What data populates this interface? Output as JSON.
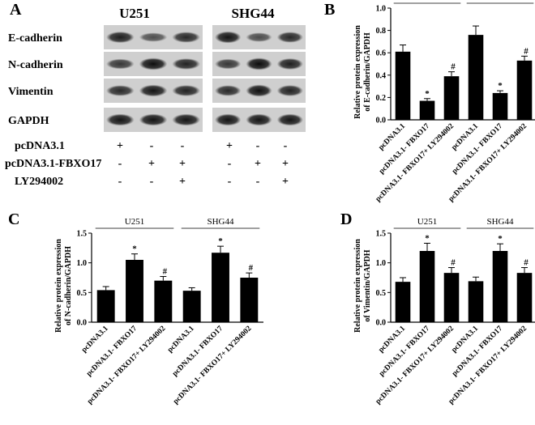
{
  "panel_a": {
    "letter": "A",
    "cell_lines": [
      "U251",
      "SHG44"
    ],
    "proteins": [
      "E-cadherin",
      "N-cadherin",
      "Vimentin",
      "GAPDH"
    ],
    "treatment_rows": [
      {
        "label": "pcDNA3.1",
        "signs": [
          "+",
          "-",
          "-",
          "+",
          "-",
          "-"
        ]
      },
      {
        "label": "pcDNA3.1-FBXO17",
        "signs": [
          "-",
          "+",
          "+",
          "-",
          "+",
          "+"
        ]
      },
      {
        "label": "LY294002",
        "signs": [
          "-",
          "-",
          "+",
          "-",
          "-",
          "+"
        ]
      }
    ],
    "band_intensity": [
      [
        0.78,
        0.42,
        0.7,
        0.85,
        0.45,
        0.7
      ],
      [
        0.6,
        0.9,
        0.75,
        0.6,
        0.92,
        0.78
      ],
      [
        0.7,
        0.85,
        0.75,
        0.7,
        0.88,
        0.75
      ],
      [
        0.85,
        0.85,
        0.85,
        0.85,
        0.85,
        0.85
      ]
    ]
  },
  "chart_data": [
    {
      "panel": "B",
      "type": "bar",
      "ylabel": [
        "Relative protein expression",
        "of E-cadherin/GAPDH"
      ],
      "ylim": [
        0,
        1.0
      ],
      "yticks": [
        "0.0",
        "0.2",
        "0.4",
        "0.6",
        "0.8",
        "1.0"
      ],
      "groups": [
        "U251",
        "SHG44"
      ],
      "categories": [
        "pcDNA3.1",
        "pcDNA3.1- FBXO17",
        "pcDNA3.1- FBXO17+ LY294002",
        "pcDNA3.1",
        "pcDNA3.1- FBXO17",
        "pcDNA3.1- FBXO17+ LY294002"
      ],
      "values": [
        0.61,
        0.17,
        0.39,
        0.76,
        0.24,
        0.53
      ],
      "errors": [
        0.06,
        0.02,
        0.04,
        0.08,
        0.02,
        0.04
      ],
      "marks": [
        "",
        "*",
        "#",
        "",
        "*",
        "#"
      ]
    },
    {
      "panel": "C",
      "type": "bar",
      "ylabel": [
        "Relative protein expression",
        "of N-cadherin/GAPDH"
      ],
      "ylim": [
        0,
        1.5
      ],
      "yticks": [
        "0.0",
        "0.5",
        "1.0",
        "1.5"
      ],
      "groups": [
        "U251",
        "SHG44"
      ],
      "categories": [
        "pcDNA3.1",
        "pcDNA3.1- FBXO17",
        "pcDNA3.1- FBXO17+ LY294002",
        "pcDNA3.1",
        "pcDNA3.1- FBXO17",
        "pcDNA3.1- FBXO17+ LY294002"
      ],
      "values": [
        0.54,
        1.05,
        0.7,
        0.53,
        1.17,
        0.75
      ],
      "errors": [
        0.06,
        0.1,
        0.07,
        0.05,
        0.11,
        0.08
      ],
      "marks": [
        "",
        "*",
        "#",
        "",
        "*",
        "#"
      ]
    },
    {
      "panel": "D",
      "type": "bar",
      "ylabel": [
        "Relative protein expression",
        "of Vimentin/GAPDH"
      ],
      "ylim": [
        0,
        1.5
      ],
      "yticks": [
        "0.0",
        "0.5",
        "1.0",
        "1.5"
      ],
      "groups": [
        "U251",
        "SHG44"
      ],
      "categories": [
        "pcDNA3.1",
        "pcDNA3.1- FBXO17",
        "pcDNA3.1- FBXO17+ LY294002",
        "pcDNA3.1",
        "pcDNA3.1- FBXO17",
        "pcDNA3.1- FBXO17+ LY294002"
      ],
      "values": [
        0.68,
        1.2,
        0.83,
        0.69,
        1.2,
        0.83
      ],
      "errors": [
        0.07,
        0.13,
        0.09,
        0.07,
        0.12,
        0.09
      ],
      "marks": [
        "",
        "*",
        "#",
        "",
        "*",
        "#"
      ]
    }
  ]
}
